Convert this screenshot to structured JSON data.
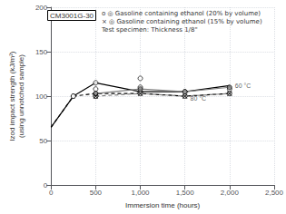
{
  "chart_data": {
    "type": "line",
    "title": "CM3001G-30",
    "x_label": "Immersion time (hours)",
    "y_label": "Izod impact strength (kJ/m²)\n(using unnotched sample)",
    "xlim": [
      0,
      2500
    ],
    "ylim": [
      0,
      200
    ],
    "xticks": [
      0,
      500,
      {
        "value": 1000,
        "label": "1,000"
      },
      {
        "value": 1500,
        "label": "1,500"
      },
      {
        "value": 2000,
        "label": "2,000"
      },
      {
        "value": 2500,
        "label": "2,500"
      }
    ],
    "yticks": [
      0,
      50,
      100,
      150,
      200
    ],
    "grid": true,
    "series": [
      {
        "type": "line",
        "color": "black",
        "line_style": "solid",
        "marker": "none",
        "x": [
          0,
          250,
          500,
          1000,
          1500,
          2000
        ],
        "values": [
          65,
          100,
          115,
          105,
          105,
          112
        ]
      },
      {
        "type": "line",
        "color": "black",
        "line_style": "dashed",
        "marker": "none",
        "x": [
          0,
          250,
          500,
          1000,
          1500,
          2000
        ],
        "values": [
          65,
          100,
          103,
          103,
          100,
          103
        ]
      },
      {
        "type": "line",
        "color": "gray",
        "line_style": "solid",
        "marker": "none",
        "x": [
          500,
          1000,
          1500,
          2000
        ],
        "values": [
          103,
          108,
          105,
          110
        ]
      },
      {
        "type": "line",
        "color": "gray",
        "line_style": "dashed",
        "marker": "none",
        "x": [
          500,
          1000,
          1500,
          2000
        ],
        "values": [
          100,
          103,
          100,
          103
        ]
      },
      {
        "type": "scatter",
        "color": "black",
        "marker": "open_circle",
        "x": [
          250,
          500,
          500,
          500,
          1000,
          1000,
          1500,
          2000
        ],
        "values": [
          100,
          100,
          108,
          115,
          120,
          105,
          105,
          108
        ]
      },
      {
        "type": "scatter",
        "color": "black",
        "marker": "open_circle",
        "x": [
          250,
          500,
          500,
          1000,
          1000,
          1500,
          2000
        ],
        "values": [
          100,
          100,
          103,
          110,
          103,
          100,
          103
        ]
      },
      {
        "type": "scatter",
        "color": "gray",
        "marker": "circle",
        "x": [
          500,
          1000,
          1500,
          2000
        ],
        "values": [
          103,
          108,
          105,
          110
        ]
      },
      {
        "type": "scatter",
        "color": "black",
        "marker": "x",
        "x": [
          500,
          1000,
          1500,
          2000
        ],
        "values": [
          100,
          103,
          100,
          103
        ]
      }
    ],
    "annotations": [
      {
        "text": "60 °C",
        "x": 2060,
        "y": 112
      },
      {
        "text": "80 °C",
        "x": 1560,
        "y": 97
      },
      {
        "text": "o ◎ Gasoline containing ethanol (20% by volume)"
      },
      {
        "text": "× ◎ Gasoline containing ethanol (15% by volume)"
      },
      {
        "text": "Test specimen: Thickness 1/8\""
      }
    ]
  }
}
